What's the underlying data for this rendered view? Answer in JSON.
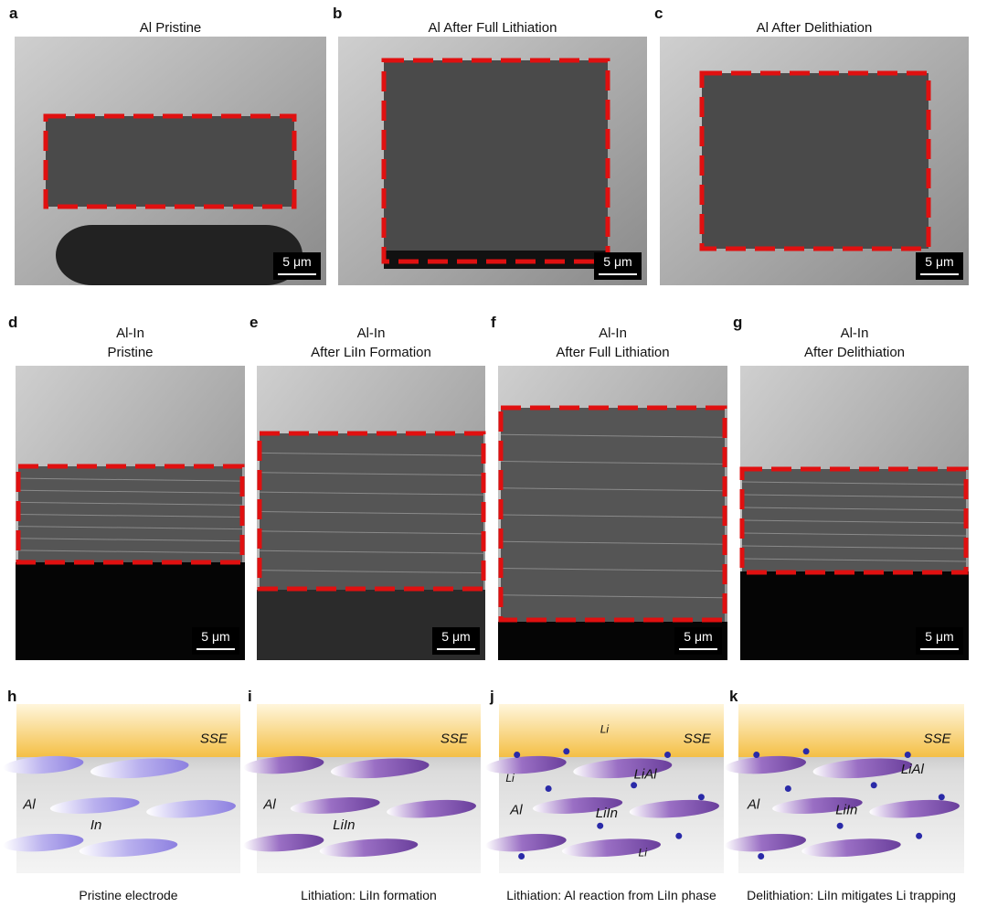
{
  "row1": [
    {
      "letter": "a",
      "title": "Al Pristine",
      "scale": "5 μm"
    },
    {
      "letter": "b",
      "title": "Al After Full Lithiation",
      "scale": "5 μm"
    },
    {
      "letter": "c",
      "title": "Al After Delithiation",
      "scale": "5 μm"
    }
  ],
  "row2": [
    {
      "letter": "d",
      "title": [
        "Al-In",
        "Pristine"
      ],
      "scale": "5 μm"
    },
    {
      "letter": "e",
      "title": [
        "Al-In",
        "After LiIn Formation"
      ],
      "scale": "5 μm"
    },
    {
      "letter": "f",
      "title": [
        "Al-In",
        "After Full Lithiation"
      ],
      "scale": "5 μm"
    },
    {
      "letter": "g",
      "title": [
        "Al-In",
        "After Delithiation"
      ],
      "scale": "5 μm"
    }
  ],
  "row3": [
    {
      "letter": "h",
      "labels": [
        "SSE",
        "Al",
        "In"
      ],
      "caption": "Pristine electrode"
    },
    {
      "letter": "i",
      "labels": [
        "SSE",
        "Al",
        "LiIn"
      ],
      "caption": "Lithiation: LiIn formation"
    },
    {
      "letter": "j",
      "labels": [
        "SSE",
        "Li",
        "Li",
        "Al",
        "LiAl",
        "LiIn",
        "Li"
      ],
      "caption": "Lithiation: Al reaction from LiIn phase"
    },
    {
      "letter": "k",
      "labels": [
        "SSE",
        "LiAl",
        "Al",
        "LiIn"
      ],
      "caption": "Delithiation: LiIn mitigates Li trapping"
    }
  ]
}
